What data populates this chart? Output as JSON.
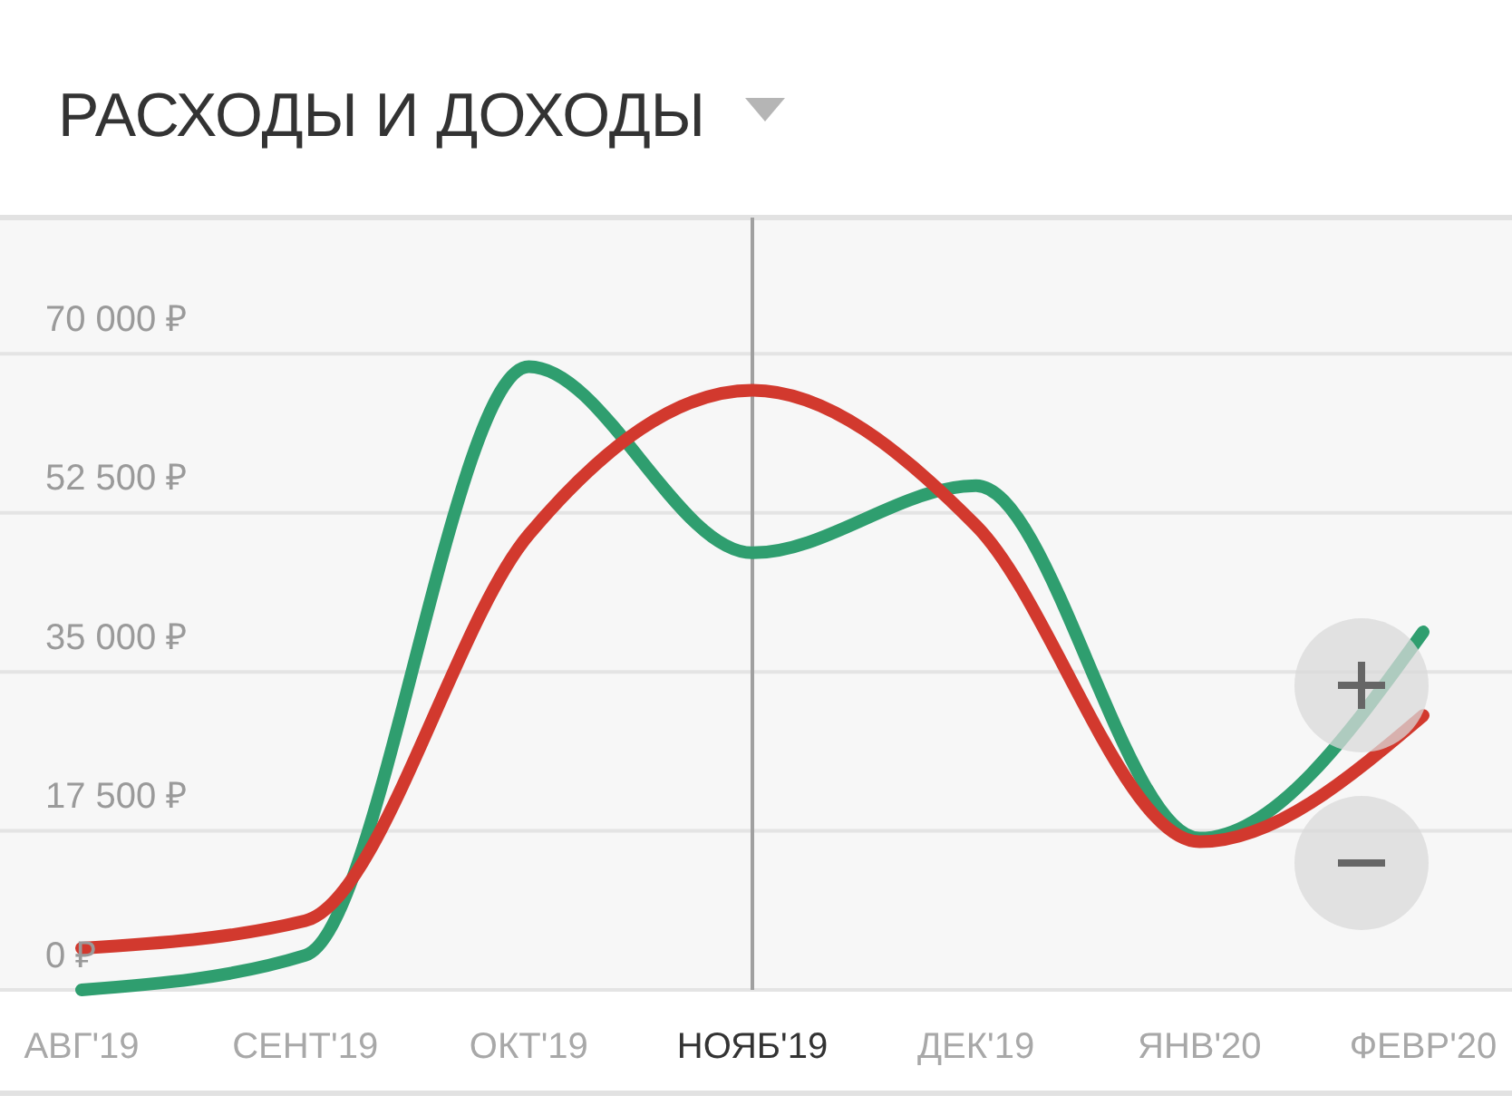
{
  "chart_data": {
    "type": "line",
    "title": "РАСХОДЫ И ДОХОДЫ",
    "categories": [
      "АВГ'19",
      "СЕНТ'19",
      "ОКТ'19",
      "НОЯБ'19",
      "ДЕК'19",
      "ЯНВ'20",
      "ФЕВР'20"
    ],
    "series": [
      {
        "color": "#2f9e6f",
        "values": [
          0,
          3800,
          68600,
          48100,
          55500,
          16700,
          39400
        ]
      },
      {
        "color": "#d2392e",
        "values": [
          4600,
          7600,
          50100,
          66000,
          51100,
          16300,
          30200
        ]
      }
    ],
    "ylim": [
      0,
      85000
    ],
    "yticks": [
      {
        "value": 0,
        "label": "0 ₽"
      },
      {
        "value": 17500,
        "label": "17 500 ₽"
      },
      {
        "value": 35000,
        "label": "35 000 ₽"
      },
      {
        "value": 52500,
        "label": "52 500 ₽"
      },
      {
        "value": 70000,
        "label": "70 000 ₽"
      }
    ],
    "grid": "y",
    "marker": "none",
    "line_style": "solid",
    "ref_lines": [
      {
        "axis": "x",
        "value": "НОЯБ'19",
        "color": "#a0a0a0"
      }
    ]
  }
}
